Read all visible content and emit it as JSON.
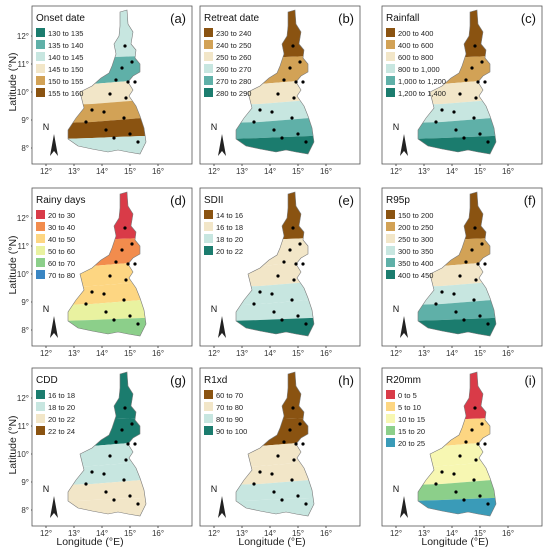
{
  "axes": {
    "ylabel": "Latitude (°N)",
    "xlabel": "Longitude (°E)",
    "lat_ticks": [
      "12°",
      "11°",
      "10°",
      "9°",
      "8°"
    ],
    "lon_ticks": [
      "12°",
      "13°",
      "14°",
      "15°",
      "16°"
    ]
  },
  "north_label": "N",
  "panels": [
    {
      "letter": "(a)",
      "title": "Onset date",
      "legend": [
        "130 to 135",
        "135 to 140",
        "140 to 145",
        "145 to 150",
        "150 to 155",
        "155 to 160"
      ],
      "colors": [
        "#1b7c6e",
        "#5fb0a8",
        "#c7e6e0",
        "#f2e6c8",
        "#d2a256",
        "#8a5311"
      ],
      "zone_colors": [
        "#c7e6e0",
        "#5fb0a8",
        "#f2e6c8",
        "#d2a256",
        "#8a5311"
      ]
    },
    {
      "letter": "(b)",
      "title": "Retreat date",
      "legend": [
        "230 to 240",
        "240 to 250",
        "250 to 260",
        "260 to 270",
        "270 to 280",
        "280 to 290"
      ],
      "colors": [
        "#8a5311",
        "#d2a256",
        "#f2e6c8",
        "#c7e6e0",
        "#5fb0a8",
        "#1b7c6e"
      ],
      "zone_colors": [
        "#8a5311",
        "#d2a256",
        "#f2e6c8",
        "#c7e6e0",
        "#5fb0a8",
        "#1b7c6e"
      ]
    },
    {
      "letter": "(c)",
      "title": "Rainfall",
      "legend": [
        "200 to 400",
        "400 to 600",
        "600 to 800",
        "800 to 1,000",
        "1,000 to 1,200",
        "1,200 to 1,400"
      ],
      "colors": [
        "#8a5311",
        "#d2a256",
        "#f2e6c8",
        "#c7e6e0",
        "#5fb0a8",
        "#1b7c6e"
      ],
      "zone_colors": [
        "#8a5311",
        "#d2a256",
        "#f2e6c8",
        "#c7e6e0",
        "#5fb0a8",
        "#1b7c6e"
      ]
    },
    {
      "letter": "(d)",
      "title": "Rainy days",
      "legend": [
        "20 to 30",
        "30 to 40",
        "40 to 50",
        "50 to 60",
        "60 to 70",
        "70 to 80"
      ],
      "colors": [
        "#d93b48",
        "#f28c4d",
        "#fdd682",
        "#e9f2a0",
        "#8ccf8a",
        "#3a86c3"
      ],
      "zone_colors": [
        "#d93b48",
        "#f28c4d",
        "#fdd682",
        "#fdd682",
        "#e9f2a0",
        "#8ccf8a"
      ]
    },
    {
      "letter": "(e)",
      "title": "SDII",
      "legend": [
        "14 to 16",
        "16 to 18",
        "18 to 20",
        "20 to 22"
      ],
      "colors": [
        "#8a5311",
        "#f2e6c8",
        "#c7e6e0",
        "#1b7c6e"
      ],
      "zone_colors": [
        "#8a5311",
        "#f2e6c8",
        "#f2e6c8",
        "#c7e6e0",
        "#c7e6e0",
        "#1b7c6e"
      ]
    },
    {
      "letter": "(f)",
      "title": "R95p",
      "legend": [
        "150 to 200",
        "200 to 250",
        "250 to 300",
        "300 to 350",
        "350 to 400",
        "400 to 450"
      ],
      "colors": [
        "#8a5311",
        "#d2a256",
        "#f2e6c8",
        "#c7e6e0",
        "#5fb0a8",
        "#1b7c6e"
      ],
      "zone_colors": [
        "#8a5311",
        "#d2a256",
        "#f2e6c8",
        "#c7e6e0",
        "#5fb0a8",
        "#1b7c6e"
      ]
    },
    {
      "letter": "(g)",
      "title": "CDD",
      "legend": [
        "16 to 18",
        "18 to 20",
        "20 to 22",
        "22 to 24"
      ],
      "colors": [
        "#1b7c6e",
        "#c7e6e0",
        "#f2e6c8",
        "#8a5311"
      ],
      "zone_colors": [
        "#1b7c6e",
        "#1b7c6e",
        "#c7e6e0",
        "#c7e6e0",
        "#f2e6c8",
        "#f2e6c8"
      ]
    },
    {
      "letter": "(h)",
      "title": "R1xd",
      "legend": [
        "60 to 70",
        "70 to 80",
        "80 to 90",
        "90 to 100"
      ],
      "colors": [
        "#8a5311",
        "#f2e6c8",
        "#c7e6e0",
        "#1b7c6e"
      ],
      "zone_colors": [
        "#8a5311",
        "#8a5311",
        "#f2e6c8",
        "#f2e6c8",
        "#c7e6e0",
        "#c7e6e0"
      ]
    },
    {
      "letter": "(i)",
      "title": "R20mm",
      "legend": [
        "0 to 5",
        "5 to 10",
        "10 to 15",
        "15 to 20",
        "20 to 25"
      ],
      "colors": [
        "#d93b48",
        "#fdd682",
        "#f7f7b2",
        "#8ccf8a",
        "#3a9bb8"
      ],
      "zone_colors": [
        "#d93b48",
        "#fdd682",
        "#f7f7b2",
        "#f7f7b2",
        "#8ccf8a",
        "#3a9bb8"
      ]
    }
  ]
}
